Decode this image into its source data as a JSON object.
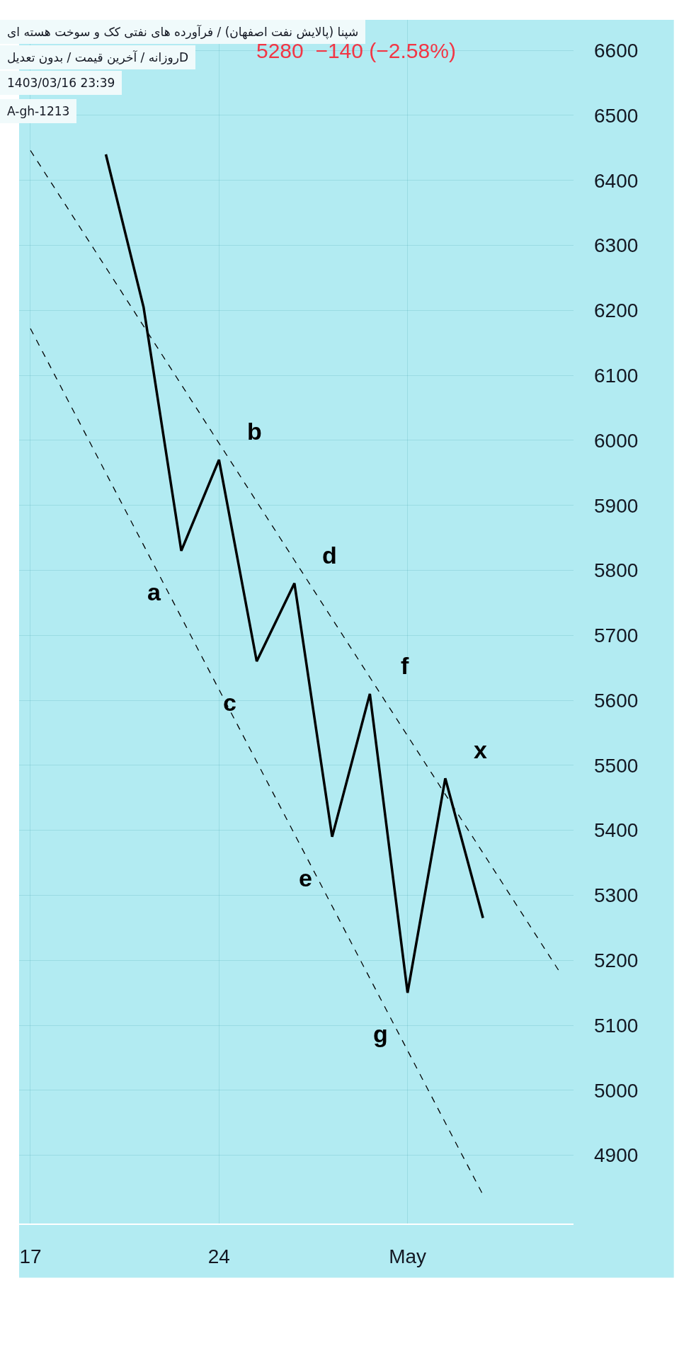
{
  "chart_data": {
    "type": "line",
    "title": "شپنا (پالایش نفت اصفهان) / فرآورده های نفتی کک و سوخت هسته ای",
    "subtitle": "Dروزانه / آخرین قیمت / بدون تعدیل",
    "annotations": [
      "5280  −140 (−2.58%)",
      "1403/03/16 23:39",
      "A-gh-1213",
      "a",
      "b",
      "c",
      "d",
      "e",
      "f",
      "g",
      "x"
    ],
    "categories": [
      "17",
      null,
      null,
      null,
      null,
      "24",
      null,
      null,
      null,
      null,
      "May",
      null,
      null,
      null,
      null
    ],
    "series": [
      {
        "values": [
          null,
          null,
          6440,
          6205,
          5830,
          5970,
          5660,
          5780,
          5390,
          5610,
          5150,
          5480,
          5265,
          null,
          null
        ],
        "color": "#000000",
        "line_style": "solid"
      },
      {
        "type": "line",
        "values": [
          6446,
          null,
          null,
          null,
          null,
          null,
          null,
          null,
          null,
          null,
          null,
          null,
          null,
          null,
          5185
        ],
        "color": "#000000",
        "line_style": "dashed"
      },
      {
        "type": "line",
        "values": [
          6172,
          null,
          null,
          null,
          null,
          null,
          null,
          null,
          null,
          null,
          null,
          null,
          4839,
          null,
          null
        ],
        "color": "#000000",
        "line_style": "dashed"
      }
    ],
    "ylim": [
      4795,
      6647
    ],
    "yticks": [
      4900,
      5000,
      5100,
      5200,
      5300,
      5400,
      5500,
      5600,
      5700,
      5800,
      5900,
      6000,
      6100,
      6200,
      6300,
      6400,
      6500,
      6600
    ],
    "grid": true,
    "marker": "none"
  }
}
